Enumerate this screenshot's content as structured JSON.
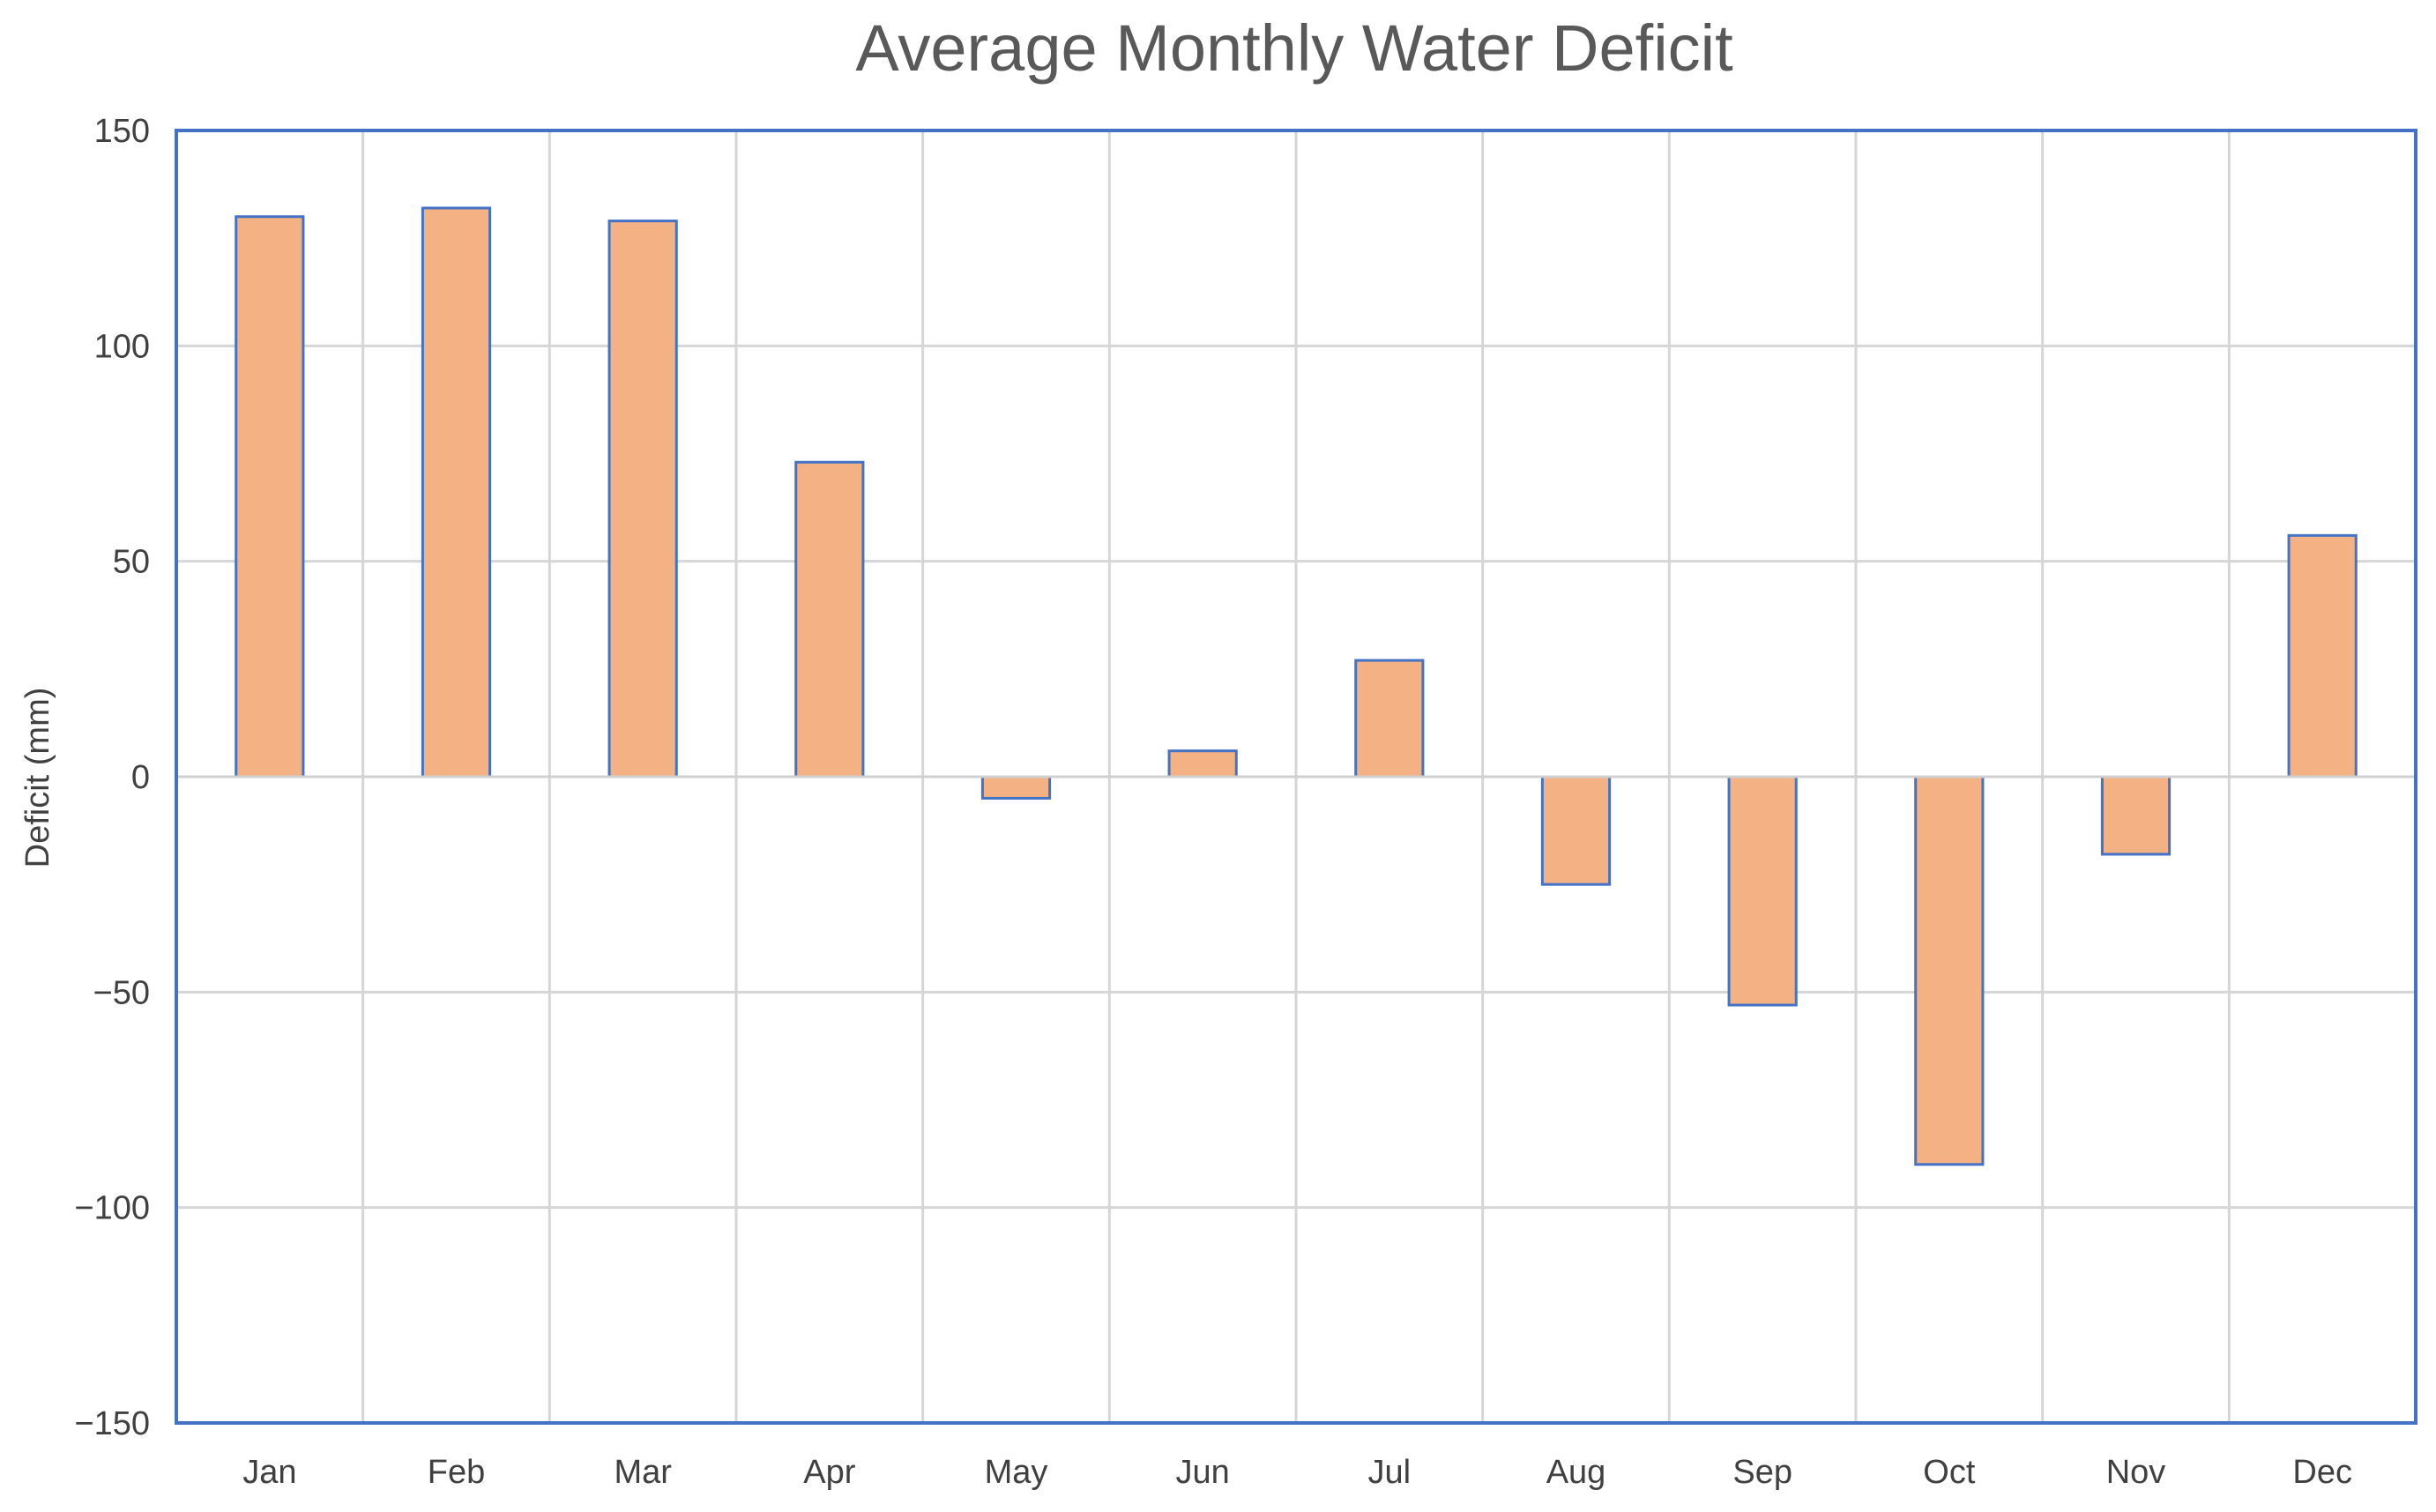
{
  "chart_data": {
    "type": "bar",
    "title": "Average Monthly Water Deficit",
    "xlabel": "",
    "ylabel": "Deficit (mm)",
    "ylim": [
      -150,
      150
    ],
    "yticks": [
      "150",
      "100",
      "50",
      "0",
      "−50",
      "−100",
      "−150"
    ],
    "ytick_values": [
      150,
      100,
      50,
      0,
      -50,
      -100,
      -150
    ],
    "categories": [
      "Jan",
      "Feb",
      "Mar",
      "Apr",
      "May",
      "Jun",
      "Jul",
      "Aug",
      "Sep",
      "Oct",
      "Nov",
      "Dec"
    ],
    "values": [
      130,
      132,
      129,
      73,
      -5,
      6,
      27,
      -25,
      -53,
      -90,
      -18,
      56
    ],
    "grid": true,
    "colors": {
      "bar_fill": "#f4b183",
      "bar_stroke": "#4472c4",
      "frame": "#4472c4",
      "grid": "#d6d6d6"
    }
  }
}
